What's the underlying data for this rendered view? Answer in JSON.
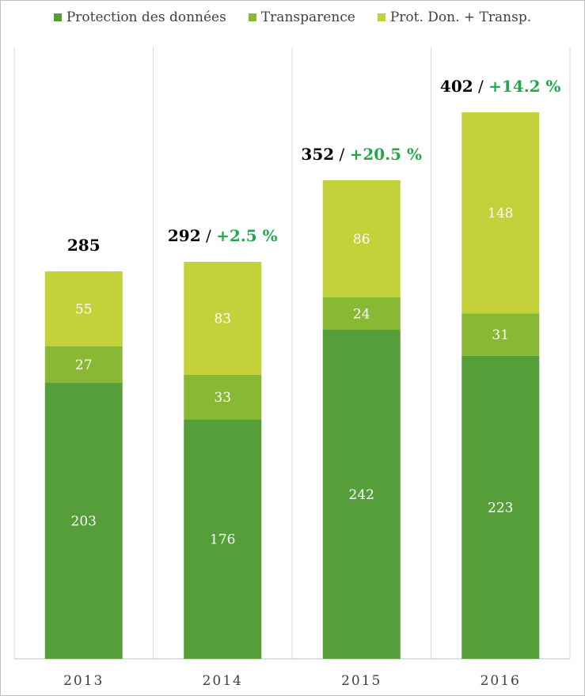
{
  "chart_data": {
    "type": "bar",
    "stacked": true,
    "categories": [
      "2013",
      "2014",
      "2015",
      "2016"
    ],
    "series": [
      {
        "name": "Protection des données",
        "values": [
          203,
          176,
          242,
          223
        ],
        "color": "#559e3a"
      },
      {
        "name": "Transparence",
        "values": [
          27,
          33,
          24,
          31
        ],
        "color": "#89b934"
      },
      {
        "name": "Prot. Don. + Transp.",
        "values": [
          55,
          83,
          86,
          148
        ],
        "color": "#c3d13a"
      }
    ],
    "totals": [
      "285",
      "292",
      "352",
      "402"
    ],
    "growth": [
      "",
      "+2.5 %",
      "+20.5 %",
      "+14.2 %"
    ],
    "separator": " / ",
    "ylim": [
      0,
      402
    ],
    "grid": "vertical",
    "legend_position": "top-center",
    "colors": {
      "growth": "#22a84a",
      "total": "#000000",
      "grid": "#d9d9d9",
      "axis": "#bfbfbf"
    }
  }
}
